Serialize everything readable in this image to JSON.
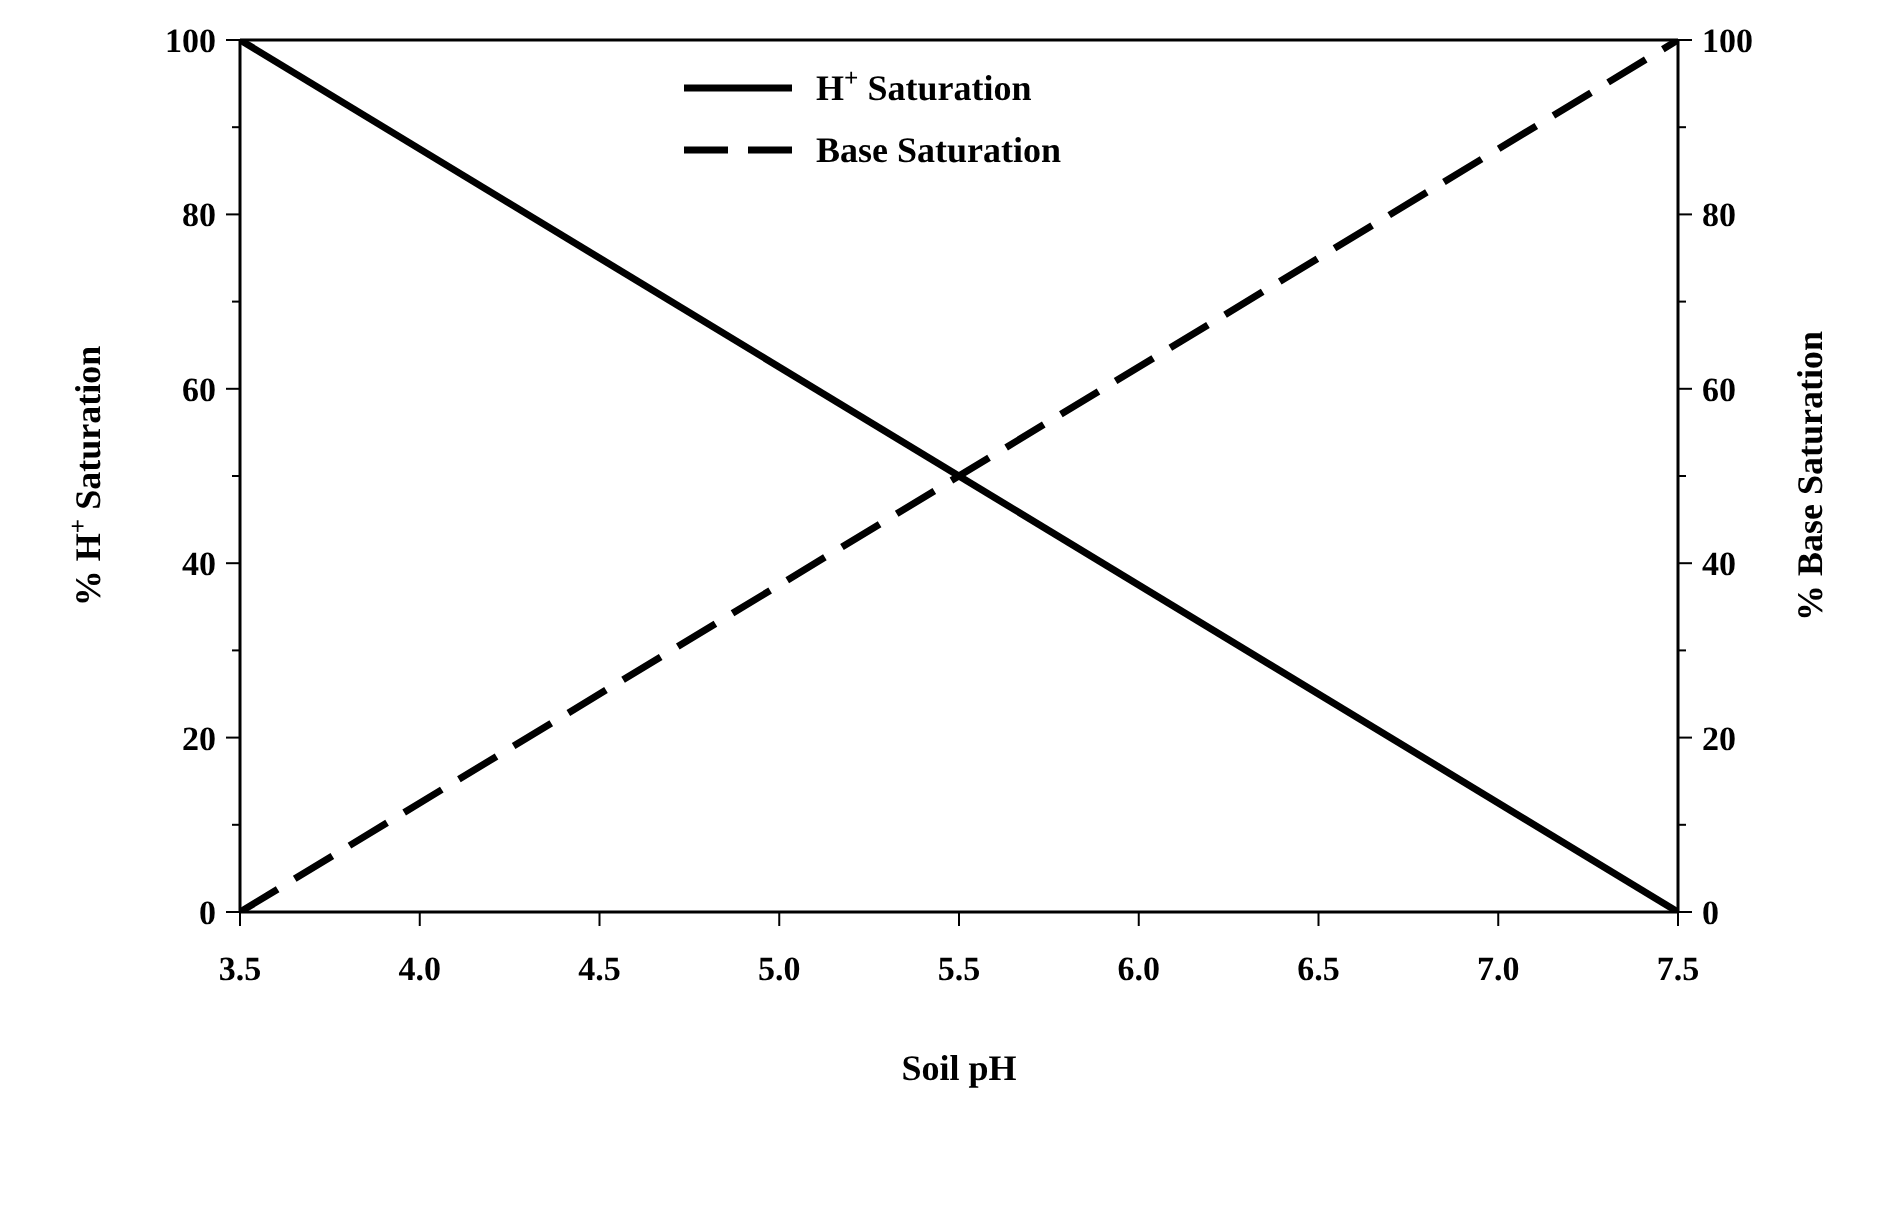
{
  "chart_data": {
    "type": "line",
    "xlabel": "Soil pH",
    "ylabel": "% H$^{+}$ Saturation",
    "y2label": "% Base Saturation",
    "x": [
      3.5,
      7.5
    ],
    "series": [
      {
        "name": "H$^{+}$ Saturation",
        "color": "#000000",
        "values": [
          100,
          0
        ],
        "line_style": "solid"
      },
      {
        "name": "Base Saturation",
        "color": "#000000",
        "values": [
          0,
          100
        ],
        "line_style": "dashed",
        "axis": "y2"
      }
    ],
    "xlim": [
      3.5,
      7.5
    ],
    "xticks": [
      3.5,
      {
        "value": 4,
        "label": "4.0"
      },
      4.5,
      {
        "value": 5,
        "label": "5.0"
      },
      5.5,
      {
        "value": 6,
        "label": "6.0"
      },
      6.5,
      {
        "value": 7,
        "label": "7.0"
      },
      7.5
    ],
    "ylim": [
      0,
      100
    ],
    "yticks": [
      0,
      {
        "value": 10,
        "label": null
      },
      20,
      {
        "value": 30,
        "label": null
      },
      40,
      {
        "value": 50,
        "label": null
      },
      60,
      {
        "value": 70,
        "label": null
      },
      80,
      {
        "value": 90,
        "label": null
      },
      100
    ],
    "y2lim": [
      0,
      100
    ],
    "y2ticks": [
      0,
      {
        "value": 10,
        "label": null
      },
      20,
      {
        "value": 30,
        "label": null
      },
      40,
      {
        "value": 50,
        "label": null
      },
      60,
      {
        "value": 70,
        "label": null
      },
      80,
      {
        "value": 90,
        "label": null
      },
      100
    ],
    "legend": "top",
    "marker": "none",
    "grid": false
  }
}
